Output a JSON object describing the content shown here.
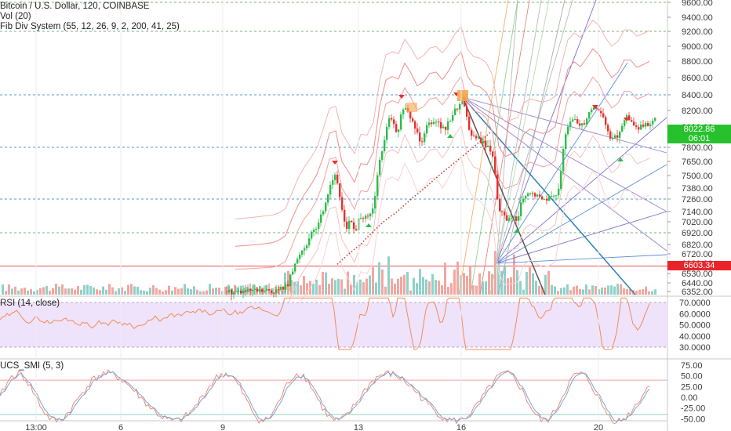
{
  "legends": {
    "symbol": "Bitcoin / U.S. Dollar, 120, COINBASE",
    "volume": "Vol (20)",
    "fib": "Fib Div System (55, 12, 26, 9, 2, 200, 41, 25)",
    "rsi": "RSI (14, close)",
    "ucs": "UCS_SMI (5, 3)"
  },
  "tags": {
    "last_price": "8022.86",
    "countdown": "06:01",
    "support_price": "6603.34"
  },
  "colors": {
    "bull": "#26a69a",
    "bull_candle": "#2ebd4b",
    "bear": "#e5322d",
    "last_tag": "#27c12e",
    "support_tag": "#e8242a",
    "rsi_band": "#efe2fb",
    "rsi_line": "#f28c55",
    "smi_a": "#f08a7a",
    "smi_b": "#7aa6d6"
  },
  "chart_data": [
    {
      "type": "candlestick",
      "pane": "price",
      "title": "Bitcoin / U.S. Dollar, 120, COINBASE",
      "x_ticks": [
        "13:00",
        "6",
        "9",
        "13",
        "16",
        "20"
      ],
      "y_ticks": [
        9600,
        9400,
        9200,
        9000,
        8800,
        8600,
        8400,
        8200,
        8000,
        7800,
        7650,
        7500,
        7380,
        7260,
        7140,
        7020,
        6920,
        6820,
        6720,
        6630,
        6530,
        6440,
        6352
      ],
      "y_tick_labels": [
        "9600.00",
        "9400.00",
        "9200.00",
        "9000.00",
        "8800.00",
        "8600.00",
        "8400.00",
        "8200.00",
        "8000.00",
        "7800.00",
        "7650.00",
        "7500.00",
        "7380.00",
        "7260.00",
        "7140.00",
        "7020.00",
        "6920.00",
        "6820.00",
        "6720.00",
        "6630.00",
        "6530.00",
        "6440.00",
        "6352.00"
      ],
      "horizontal_levels": [
        9600,
        9200,
        8400,
        7800,
        7260,
        6920,
        6603.34
      ],
      "last_price": 8022.86,
      "close_path": [
        [
          286,
          6352
        ],
        [
          320,
          6352
        ],
        [
          352,
          6360
        ],
        [
          366,
          6420
        ],
        [
          372,
          6560
        ],
        [
          382,
          6740
        ],
        [
          392,
          6860
        ],
        [
          402,
          6960
        ],
        [
          412,
          7180
        ],
        [
          420,
          7420
        ],
        [
          426,
          7520
        ],
        [
          432,
          7280
        ],
        [
          440,
          6960
        ],
        [
          446,
          7040
        ],
        [
          452,
          6900
        ],
        [
          458,
          7100
        ],
        [
          464,
          7060
        ],
        [
          470,
          7080
        ],
        [
          476,
          7200
        ],
        [
          482,
          7650
        ],
        [
          488,
          7800
        ],
        [
          494,
          8120
        ],
        [
          500,
          8050
        ],
        [
          506,
          7900
        ],
        [
          512,
          8250
        ],
        [
          518,
          8180
        ],
        [
          524,
          8080
        ],
        [
          530,
          7960
        ],
        [
          536,
          7850
        ],
        [
          542,
          8020
        ],
        [
          548,
          8060
        ],
        [
          554,
          8100
        ],
        [
          560,
          8020
        ],
        [
          566,
          7960
        ],
        [
          572,
          8080
        ],
        [
          578,
          8200
        ],
        [
          584,
          8260
        ],
        [
          590,
          8340
        ],
        [
          596,
          8000
        ],
        [
          602,
          7900
        ],
        [
          608,
          7880
        ],
        [
          614,
          7860
        ],
        [
          620,
          7800
        ],
        [
          626,
          7760
        ],
        [
          630,
          7520
        ],
        [
          634,
          7200
        ],
        [
          640,
          7100
        ],
        [
          646,
          7040
        ],
        [
          652,
          7080
        ],
        [
          658,
          7000
        ],
        [
          662,
          7200
        ],
        [
          670,
          7300
        ],
        [
          676,
          7320
        ],
        [
          682,
          7300
        ],
        [
          690,
          7260
        ],
        [
          698,
          7280
        ],
        [
          706,
          7280
        ],
        [
          712,
          7420
        ],
        [
          716,
          7700
        ],
        [
          720,
          7920
        ],
        [
          726,
          8060
        ],
        [
          732,
          8100
        ],
        [
          738,
          8020
        ],
        [
          744,
          8060
        ],
        [
          750,
          8180
        ],
        [
          756,
          8260
        ],
        [
          762,
          8200
        ],
        [
          768,
          8120
        ],
        [
          774,
          7940
        ],
        [
          780,
          7880
        ],
        [
          786,
          7900
        ],
        [
          792,
          8020
        ],
        [
          798,
          8120
        ],
        [
          804,
          8080
        ],
        [
          810,
          7980
        ],
        [
          816,
          8000
        ],
        [
          822,
          8020
        ],
        [
          828,
          8050
        ],
        [
          834,
          8080
        ]
      ]
    },
    {
      "type": "line",
      "pane": "rsi",
      "title": "RSI (14, close)",
      "y_ticks": [
        70,
        60,
        50,
        40,
        30
      ],
      "y_tick_labels": [
        "70.0000",
        "60.0000",
        "50.0000",
        "40.0000",
        "30.0000"
      ],
      "band": [
        30,
        70
      ]
    },
    {
      "type": "line",
      "pane": "smi",
      "title": "UCS_SMI (5, 3)",
      "y_ticks": [
        75,
        50,
        25,
        0,
        -25,
        -50
      ],
      "y_tick_labels": [
        "75.00",
        "50.00",
        "25.00",
        "0.00",
        "-25.00",
        "-50.00"
      ],
      "levels": [
        40,
        -40
      ]
    }
  ]
}
